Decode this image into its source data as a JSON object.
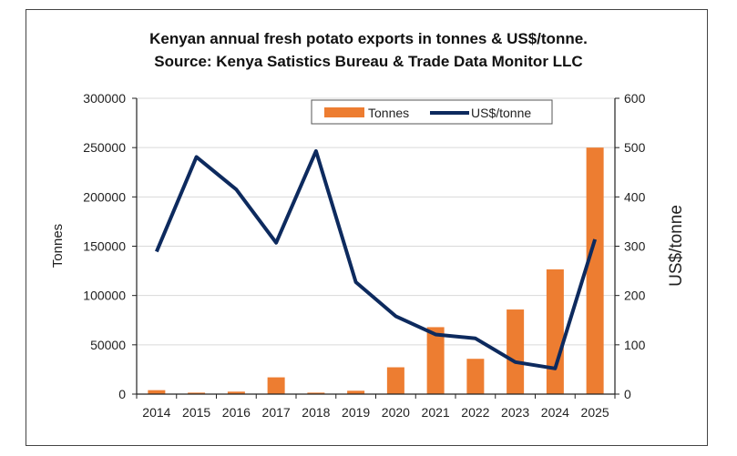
{
  "chart_data": {
    "type": "bar+line",
    "title": [
      "Kenyan annual fresh potato exports in tonnes & US$/tonne.",
      "Source: Kenya Satistics Bureau & Trade Data Monitor LLC"
    ],
    "categories": [
      "2014",
      "2015",
      "2016",
      "2017",
      "2018",
      "2019",
      "2020",
      "2021",
      "2022",
      "2023",
      "2024",
      "2025"
    ],
    "series": [
      {
        "name": "Tonnes",
        "type": "bar",
        "axis": "left",
        "color": "#ED7D31",
        "values": [
          4000,
          1500,
          2500,
          17000,
          1500,
          3400,
          27200,
          67900,
          35800,
          85800,
          126500,
          250000
        ]
      },
      {
        "name": "US$/tonne",
        "type": "line",
        "axis": "right",
        "color": "#0D2A5E",
        "values": [
          289,
          481,
          415,
          307,
          493,
          227,
          158,
          121,
          113,
          65,
          52,
          314
        ]
      }
    ],
    "ylabel": "Tonnes",
    "y2label": "US$/tonne",
    "ylim": [
      0,
      300000
    ],
    "y2lim": [
      0,
      600
    ],
    "yticks": [
      "0",
      "50000",
      "100000",
      "150000",
      "200000",
      "250000",
      "300000"
    ],
    "y2ticks": [
      "0",
      "100",
      "200",
      "300",
      "400",
      "500",
      "600"
    ],
    "grid": true,
    "legend": "top-center"
  }
}
